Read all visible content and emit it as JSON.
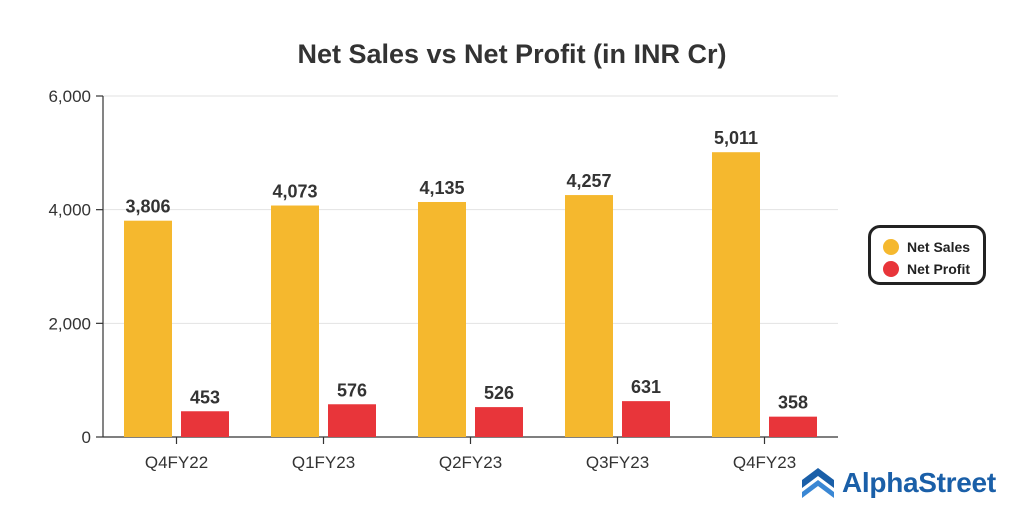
{
  "chart_data": {
    "type": "bar",
    "title": "Net Sales vs Net Profit (in INR Cr)",
    "categories": [
      "Q4FY22",
      "Q1FY23",
      "Q2FY23",
      "Q3FY23",
      "Q4FY23"
    ],
    "series": [
      {
        "name": "Net Sales",
        "values": [
          3806,
          4073,
          4135,
          4257,
          5011
        ],
        "labels": [
          "3,806",
          "4,073",
          "4,135",
          "4,257",
          "5,011"
        ],
        "color": "#F5B82E"
      },
      {
        "name": "Net Profit",
        "values": [
          453,
          576,
          526,
          631,
          358
        ],
        "labels": [
          "453",
          "576",
          "526",
          "631",
          "358"
        ],
        "color": "#E8353A"
      }
    ],
    "ylim": [
      0,
      6000
    ],
    "yticks": [
      0,
      2000,
      4000,
      6000
    ],
    "ytick_labels": [
      "0",
      "2,000",
      "4,000",
      "6,000"
    ],
    "grid": true,
    "legend_position": "right"
  },
  "legend": {
    "items": [
      {
        "label": "Net Sales",
        "color": "#F5B82E"
      },
      {
        "label": "Net Profit",
        "color": "#E8353A"
      }
    ]
  },
  "brand": {
    "name": "AlphaStreet",
    "color": "#1a5fa8"
  }
}
